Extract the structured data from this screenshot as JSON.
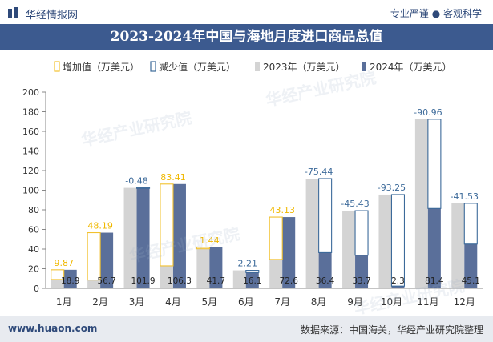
{
  "header": {
    "brand": "华经情报网",
    "slogan": "专业严谨 ● 客观科学"
  },
  "footer": {
    "url": "www.huaon.com",
    "source": "数据来源：中国海关，华经产业研究院整理"
  },
  "watermark": "华经产业研究院",
  "colors": {
    "header_bg": "#3c5a8f",
    "bar_2023": "#d4d4d4",
    "bar_2024": "#5a6f9a",
    "increase": "#f2c12e",
    "decrease": "#3c6a9a",
    "increase_label": "#f0b800",
    "decrease_label": "#3c6a9a"
  },
  "chart_data": {
    "type": "bar",
    "title": "2023-2024年中国与海地月度进口商品总值",
    "categories": [
      "1月",
      "2月",
      "3月",
      "4月",
      "5月",
      "6月",
      "7月",
      "8月",
      "9月",
      "10月",
      "11月",
      "12月"
    ],
    "series": [
      {
        "name": "2023年（万美元）",
        "values": [
          9.03,
          8.51,
          102.38,
          22.89,
          40.26,
          18.31,
          29.47,
          111.84,
          79.13,
          95.55,
          172.36,
          86.63
        ]
      },
      {
        "name": "2024年（万美元）",
        "values": [
          18.9,
          56.7,
          101.9,
          106.3,
          41.7,
          16.1,
          72.6,
          36.4,
          33.7,
          2.3,
          81.4,
          45.1
        ]
      }
    ],
    "change": {
      "increase_name": "增加值（万美元）",
      "decrease_name": "减少值（万美元）",
      "values": [
        9.87,
        48.19,
        -0.48,
        83.41,
        1.44,
        -2.21,
        43.13,
        -75.44,
        -45.43,
        -93.25,
        -90.96,
        -41.53
      ],
      "labels": [
        "9.87",
        "48.19",
        "-0.48",
        "83.41",
        "1.44",
        "-2.21",
        "43.13",
        "-75.44",
        "-45.43",
        "-93.25",
        "-90.96",
        "-41.53"
      ]
    },
    "value_labels_2024": [
      "18.9",
      "56.7",
      "101.9",
      "106.3",
      "41.7",
      "16.1",
      "72.6",
      "36.4",
      "33.7",
      "2.3",
      "81.4",
      "45.1"
    ],
    "ylim": [
      0,
      200
    ],
    "yticks": [
      "0",
      "20",
      "40",
      "60",
      "80",
      "100",
      "120",
      "140",
      "160",
      "180",
      "200"
    ],
    "grid": false,
    "legend_position": "top"
  }
}
